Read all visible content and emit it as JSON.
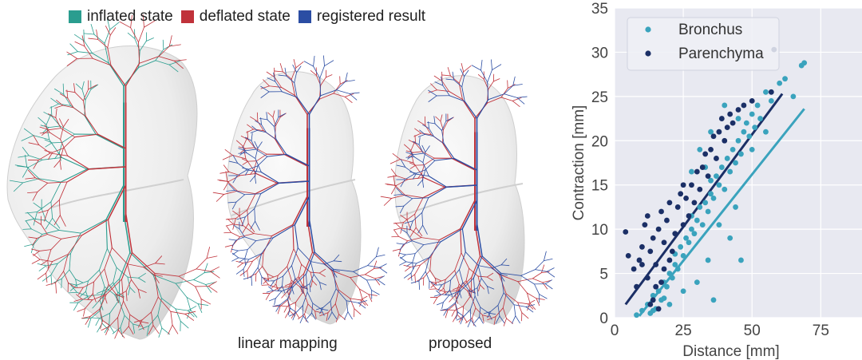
{
  "colors": {
    "inflated": "#2a9d8f",
    "deflated": "#c0323a",
    "registered": "#2b4da3",
    "bronchus": "#3aa3bd",
    "parenchyma": "#1b2f66",
    "plot_bg": "#e8e9f1"
  },
  "legend": {
    "inflated": "inflated state",
    "deflated": "deflated state",
    "registered": "registered result"
  },
  "captions": {
    "linear": "linear mapping",
    "proposed": "proposed"
  },
  "chart_data": {
    "type": "scatter",
    "title": "",
    "xlabel": "Distance [mm]",
    "ylabel": "Contraction [mm]",
    "xlim": [
      0,
      90
    ],
    "ylim": [
      0,
      35
    ],
    "xticks": [
      0,
      25,
      50,
      75
    ],
    "yticks": [
      0,
      5,
      10,
      15,
      20,
      25,
      30,
      35
    ],
    "grid": true,
    "legend_position": "top-left",
    "series": [
      {
        "name": "Bronchus",
        "color_key": "bronchus",
        "points": [
          [
            8,
            0.3
          ],
          [
            10,
            0.8
          ],
          [
            12,
            1.5
          ],
          [
            13,
            0.5
          ],
          [
            14,
            2.5
          ],
          [
            15,
            1.0
          ],
          [
            16,
            3.0
          ],
          [
            17,
            2.0
          ],
          [
            18,
            4.0
          ],
          [
            19,
            3.5
          ],
          [
            20,
            5.0
          ],
          [
            21,
            4.5
          ],
          [
            22,
            6.0
          ],
          [
            22,
            7.2
          ],
          [
            23,
            5.5
          ],
          [
            24,
            8.0
          ],
          [
            25,
            7.0
          ],
          [
            26,
            9.0
          ],
          [
            27,
            8.5
          ],
          [
            28,
            10.0
          ],
          [
            28,
            11.5
          ],
          [
            29,
            9.5
          ],
          [
            30,
            11.0
          ],
          [
            31,
            12.5
          ],
          [
            32,
            10.5
          ],
          [
            33,
            13.0
          ],
          [
            34,
            12.0
          ],
          [
            35,
            14.0
          ],
          [
            35,
            15.5
          ],
          [
            36,
            13.5
          ],
          [
            37,
            16.0
          ],
          [
            38,
            15.0
          ],
          [
            39,
            17.0
          ],
          [
            40,
            14.5
          ],
          [
            41,
            18.0
          ],
          [
            42,
            16.5
          ],
          [
            43,
            19.0
          ],
          [
            44,
            17.5
          ],
          [
            45,
            20.0
          ],
          [
            46,
            18.5
          ],
          [
            47,
            21.0
          ],
          [
            48,
            22.0
          ],
          [
            49,
            20.5
          ],
          [
            50,
            23.0
          ],
          [
            51,
            21.5
          ],
          [
            52,
            24.0
          ],
          [
            53,
            22.5
          ],
          [
            55,
            25.5
          ],
          [
            57,
            24.5
          ],
          [
            60,
            26.5
          ],
          [
            62,
            27.0
          ],
          [
            65,
            25.0
          ],
          [
            68,
            28.5
          ],
          [
            69,
            28.8
          ],
          [
            30,
            4.0
          ],
          [
            34,
            6.5
          ],
          [
            36,
            2.0
          ],
          [
            42,
            9.0
          ],
          [
            46,
            6.5
          ],
          [
            44,
            12.5
          ],
          [
            38,
            10.5
          ],
          [
            25,
            3.0
          ],
          [
            20,
            1.5
          ],
          [
            33,
            17.0
          ],
          [
            31,
            19.0
          ],
          [
            28,
            16.5
          ],
          [
            35,
            21.0
          ],
          [
            45,
            22.5
          ],
          [
            40,
            24.0
          ],
          [
            50,
            19.0
          ],
          [
            55,
            21.0
          ],
          [
            14,
            0.8
          ],
          [
            18,
            2.2
          ]
        ]
      },
      {
        "name": "Parenchyma",
        "color_key": "parenchyma",
        "points": [
          [
            4,
            9.7
          ],
          [
            5,
            7.0
          ],
          [
            7,
            5.5
          ],
          [
            8,
            3.5
          ],
          [
            9,
            6.5
          ],
          [
            10,
            8.0
          ],
          [
            11,
            10.5
          ],
          [
            12,
            4.5
          ],
          [
            12,
            11.5
          ],
          [
            13,
            7.5
          ],
          [
            14,
            2.0
          ],
          [
            14,
            9.0
          ],
          [
            15,
            6.0
          ],
          [
            16,
            10.0
          ],
          [
            17,
            12.0
          ],
          [
            17,
            4.0
          ],
          [
            18,
            8.5
          ],
          [
            19,
            11.0
          ],
          [
            20,
            13.0
          ],
          [
            20,
            6.5
          ],
          [
            21,
            7.5
          ],
          [
            22,
            9.5
          ],
          [
            23,
            12.5
          ],
          [
            24,
            14.0
          ],
          [
            25,
            10.5
          ],
          [
            26,
            13.5
          ],
          [
            27,
            11.5
          ],
          [
            28,
            15.0
          ],
          [
            29,
            13.0
          ],
          [
            30,
            16.5
          ],
          [
            31,
            14.5
          ],
          [
            32,
            17.0
          ],
          [
            33,
            18.5
          ],
          [
            34,
            16.0
          ],
          [
            35,
            19.0
          ],
          [
            36,
            20.5
          ],
          [
            37,
            18.0
          ],
          [
            38,
            21.0
          ],
          [
            39,
            22.5
          ],
          [
            40,
            20.0
          ],
          [
            41,
            21.5
          ],
          [
            42,
            23.0
          ],
          [
            43,
            22.0
          ],
          [
            45,
            23.5
          ],
          [
            47,
            24.0
          ],
          [
            50,
            24.5
          ],
          [
            57,
            25.5
          ],
          [
            58,
            30.3
          ],
          [
            25,
            15.0
          ],
          [
            18,
            5.5
          ],
          [
            10,
            6.0
          ],
          [
            15,
            3.5
          ],
          [
            13,
            1.5
          ],
          [
            16,
            1.0
          ]
        ]
      }
    ],
    "fits": [
      {
        "name": "Bronchus",
        "color_key": "bronchus",
        "x": [
          9,
          69
        ],
        "y": [
          0.2,
          23.6
        ]
      },
      {
        "name": "Parenchyma",
        "color_key": "parenchyma",
        "x": [
          4,
          61
        ],
        "y": [
          1.5,
          25.3
        ]
      }
    ]
  }
}
